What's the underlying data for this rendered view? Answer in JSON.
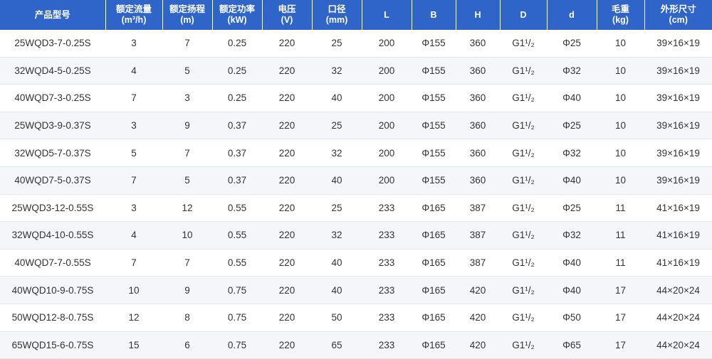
{
  "table": {
    "headers": [
      {
        "name": "产品型号"
      },
      {
        "name": "额定流量",
        "unit": "(m³/h)"
      },
      {
        "name": "额定扬程",
        "unit": "(m)"
      },
      {
        "name": "额定功率",
        "unit": "(kW)"
      },
      {
        "name": "电压",
        "unit": "(V)"
      },
      {
        "name": "口径",
        "unit": "(mm)"
      },
      {
        "name": "L"
      },
      {
        "name": "B"
      },
      {
        "name": "H"
      },
      {
        "name": "D"
      },
      {
        "name": "d"
      },
      {
        "name": "毛重",
        "unit": "(kg)"
      },
      {
        "name": "外形尺寸",
        "unit": "(cm)"
      }
    ],
    "rows": [
      [
        "25WQD3-7-0.25S",
        "3",
        "7",
        "0.25",
        "220",
        "25",
        "200",
        "Φ155",
        "360",
        "G1¹/₂",
        "Φ25",
        "10",
        "39×16×19"
      ],
      [
        "32WQD4-5-0.25S",
        "4",
        "5",
        "0.25",
        "220",
        "32",
        "200",
        "Φ155",
        "360",
        "G1¹/₂",
        "Φ32",
        "10",
        "39×16×19"
      ],
      [
        "40WQD7-3-0.25S",
        "7",
        "3",
        "0.25",
        "220",
        "40",
        "200",
        "Φ155",
        "360",
        "G1¹/₂",
        "Φ40",
        "10",
        "39×16×19"
      ],
      [
        "25WQD3-9-0.37S",
        "3",
        "9",
        "0.37",
        "220",
        "25",
        "200",
        "Φ155",
        "360",
        "G1¹/₂",
        "Φ25",
        "10",
        "39×16×19"
      ],
      [
        "32WQD5-7-0.37S",
        "5",
        "7",
        "0.37",
        "220",
        "32",
        "200",
        "Φ155",
        "360",
        "G1¹/₂",
        "Φ32",
        "10",
        "39×16×19"
      ],
      [
        "40WQD7-5-0.37S",
        "7",
        "5",
        "0.37",
        "220",
        "40",
        "200",
        "Φ155",
        "360",
        "G1¹/₂",
        "Φ40",
        "10",
        "39×16×19"
      ],
      [
        "25WQD3-12-0.55S",
        "3",
        "12",
        "0.55",
        "220",
        "25",
        "233",
        "Φ165",
        "387",
        "G1¹/₂",
        "Φ25",
        "11",
        "41×16×19"
      ],
      [
        "32WQD4-10-0.55S",
        "4",
        "10",
        "0.55",
        "220",
        "32",
        "233",
        "Φ165",
        "387",
        "G1¹/₂",
        "Φ32",
        "11",
        "41×16×19"
      ],
      [
        "40WQD7-7-0.55S",
        "7",
        "7",
        "0.55",
        "220",
        "40",
        "233",
        "Φ165",
        "387",
        "G1¹/₂",
        "Φ40",
        "11",
        "41×16×19"
      ],
      [
        "40WQD10-9-0.75S",
        "10",
        "9",
        "0.75",
        "220",
        "40",
        "233",
        "Φ165",
        "420",
        "G1¹/₂",
        "Φ40",
        "17",
        "44×20×24"
      ],
      [
        "50WQD12-8-0.75S",
        "12",
        "8",
        "0.75",
        "220",
        "50",
        "233",
        "Φ165",
        "420",
        "G1¹/₂",
        "Φ50",
        "17",
        "44×20×24"
      ],
      [
        "65WQD15-6-0.75S",
        "15",
        "6",
        "0.75",
        "220",
        "65",
        "233",
        "Φ165",
        "420",
        "G1¹/₂",
        "Φ65",
        "17",
        "44×20×24"
      ]
    ]
  }
}
